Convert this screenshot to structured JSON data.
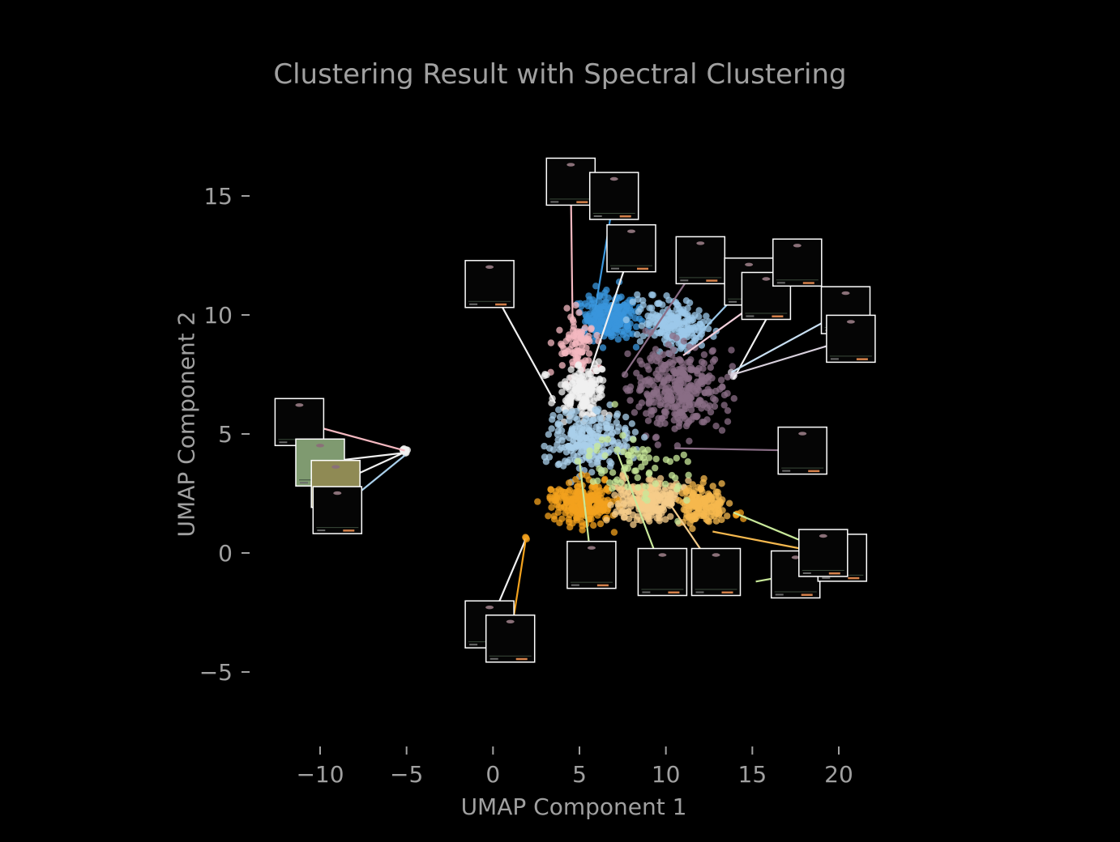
{
  "chart_data": {
    "type": "scatter",
    "title": "Clustering Result with Spectral Clustering",
    "xlabel": "UMAP Component 1",
    "ylabel": "UMAP Component 2",
    "xlim": [
      -12.4,
      23.4
    ],
    "ylim": [
      -8.6,
      18.2
    ],
    "xticks": [
      -10,
      -5,
      0,
      5,
      10,
      15,
      20
    ],
    "yticks": [
      -5,
      0,
      5,
      10,
      15
    ],
    "xtick_labels": [
      "−10",
      "−5",
      "0",
      "5",
      "10",
      "15",
      "20"
    ],
    "ytick_labels": [
      "−5",
      "0",
      "5",
      "10",
      "15"
    ],
    "grid": false,
    "legend": "none",
    "background": "#000000",
    "text_color": "#a0a0a0",
    "clusters": [
      {
        "color": "#3a96dc",
        "center": [
          6.7,
          9.9
        ],
        "spread": [
          1.4,
          0.8
        ],
        "count": 240
      },
      {
        "color": "#9cc8ea",
        "center": [
          10.4,
          9.7
        ],
        "spread": [
          1.7,
          0.9
        ],
        "count": 200
      },
      {
        "color": "#f4b8c0",
        "center": [
          4.9,
          8.6
        ],
        "spread": [
          1.0,
          1.1
        ],
        "count": 90
      },
      {
        "color": "#f0f0f0",
        "center": [
          5.3,
          6.7
        ],
        "spread": [
          1.2,
          0.9
        ],
        "count": 160
      },
      {
        "color": "#8a6e86",
        "center": [
          10.7,
          6.9
        ],
        "spread": [
          2.2,
          1.4
        ],
        "count": 320
      },
      {
        "color": "#a9cfea",
        "center": [
          5.6,
          4.7
        ],
        "spread": [
          1.9,
          1.0
        ],
        "count": 230
      },
      {
        "color": "#f3a21e",
        "center": [
          5.2,
          2.1
        ],
        "spread": [
          1.5,
          0.7
        ],
        "count": 240
      },
      {
        "color": "#f5cc8a",
        "center": [
          9.1,
          2.2
        ],
        "spread": [
          1.6,
          0.7
        ],
        "count": 230
      },
      {
        "color": "#f5b84e",
        "center": [
          12.1,
          2.0
        ],
        "spread": [
          1.1,
          0.7
        ],
        "count": 150
      },
      {
        "color": "#c8e89a",
        "center": [
          8.3,
          3.9
        ],
        "spread": [
          2.8,
          1.6
        ],
        "count": 70
      },
      {
        "color": "#f0f0f0",
        "center": [
          -5.1,
          4.3
        ],
        "spread": [
          0.12,
          0.08
        ],
        "count": 20
      },
      {
        "color": "#f3a21e",
        "center": [
          1.9,
          0.6
        ],
        "spread": [
          0.08,
          0.05
        ],
        "count": 3
      },
      {
        "color": "#f0f0f0",
        "center": [
          3.1,
          7.5
        ],
        "spread": [
          0.1,
          0.08
        ],
        "count": 3
      },
      {
        "color": "#d8d0dc",
        "center": [
          13.9,
          7.5
        ],
        "spread": [
          0.12,
          0.1
        ],
        "count": 4
      },
      {
        "color": "#f3a21e",
        "center": [
          14.1,
          1.8
        ],
        "spread": [
          0.3,
          0.3
        ],
        "count": 5
      }
    ],
    "thumbnails": [
      {
        "pos": [
          4.5,
          15.6
        ],
        "point": [
          4.6,
          9.8
        ],
        "line_color": "#f4b8c0",
        "style": "dark"
      },
      {
        "pos": [
          7.0,
          15.0
        ],
        "point": [
          5.9,
          10.2
        ],
        "line_color": "#3a96dc",
        "style": "dark"
      },
      {
        "pos": [
          8.0,
          12.8
        ],
        "point": [
          5.6,
          7.6
        ],
        "line_color": "#f0f0f0",
        "style": "dark"
      },
      {
        "pos": -1,
        "point": [
          0,
          0
        ],
        "line_color": "#000000",
        "style": "none"
      },
      {
        "pos": [
          -0.2,
          11.3
        ],
        "point": [
          3.6,
          6.3
        ],
        "line_color": "#f0f0f0",
        "style": "dark"
      },
      {
        "pos": [
          12.0,
          12.3
        ],
        "point": [
          7.5,
          7.4
        ],
        "line_color": "#8a6e86",
        "style": "dark"
      },
      {
        "pos": [
          14.8,
          11.4
        ],
        "point": [
          11.8,
          9.1
        ],
        "line_color": "#9cc8ea",
        "style": "dark"
      },
      {
        "pos": [
          15.8,
          10.8
        ],
        "point": [
          11.0,
          8.3
        ],
        "line_color": "#f4d0dc",
        "style": "dark"
      },
      {
        "pos": [
          17.6,
          12.2
        ],
        "point": [
          13.9,
          7.3
        ],
        "line_color": "#f0f0f0",
        "style": "dark"
      },
      {
        "pos": [
          20.4,
          10.2
        ],
        "point": [
          13.8,
          7.6
        ],
        "line_color": "#c8dff2",
        "style": "dark"
      },
      {
        "pos": [
          20.7,
          9.0
        ],
        "point": [
          13.9,
          7.5
        ],
        "line_color": "#d8d0dc",
        "style": "dark"
      },
      {
        "pos": [
          17.9,
          4.3
        ],
        "point": [
          10.5,
          4.4
        ],
        "line_color": "#8a6e86",
        "style": "dark"
      },
      {
        "pos": [
          -11.2,
          5.5
        ],
        "point": [
          -5.1,
          4.3
        ],
        "line_color": "#f4b8c0",
        "style": "dark"
      },
      {
        "pos": [
          -10.0,
          3.8
        ],
        "point": [
          -5.2,
          4.2
        ],
        "line_color": "#f0f0f0",
        "style": "green"
      },
      {
        "pos": [
          -9.1,
          2.9
        ],
        "point": [
          -5.2,
          4.2
        ],
        "line_color": "#f0f0f0",
        "style": "olive"
      },
      {
        "pos": [
          -9.0,
          1.8
        ],
        "point": [
          -5.1,
          4.1
        ],
        "line_color": "#a9cfea",
        "style": "dark"
      },
      {
        "pos": [
          5.7,
          -0.5
        ],
        "point": [
          5.0,
          3.9
        ],
        "line_color": "#c8e89a",
        "style": "dark"
      },
      {
        "pos": [
          9.8,
          -0.8
        ],
        "point": [
          7.2,
          4.2
        ],
        "line_color": "#c8e89a",
        "style": "dark"
      },
      {
        "pos": [
          12.9,
          -0.8
        ],
        "point": [
          10.1,
          2.2
        ],
        "line_color": "#f5cc8a",
        "style": "dark"
      },
      {
        "pos": [
          17.5,
          -0.9
        ],
        "point": [
          15.2,
          -1.2
        ],
        "line_color": "#c8e89a",
        "style": "dark"
      },
      {
        "pos": [
          20.2,
          -0.2
        ],
        "point": [
          13.9,
          1.7
        ],
        "line_color": "#c8e89a",
        "style": "dark"
      },
      {
        "pos": [
          19.1,
          0.0
        ],
        "point": [
          12.7,
          0.9
        ],
        "line_color": "#f5b84e",
        "style": "dark"
      },
      {
        "pos": [
          -0.2,
          -3.0
        ],
        "point": [
          1.9,
          0.6
        ],
        "line_color": "#f0f0f0",
        "style": "dark"
      },
      {
        "pos": [
          1.0,
          -3.6
        ],
        "point": [
          1.9,
          0.6
        ],
        "line_color": "#f3a21e",
        "style": "dark"
      }
    ]
  }
}
